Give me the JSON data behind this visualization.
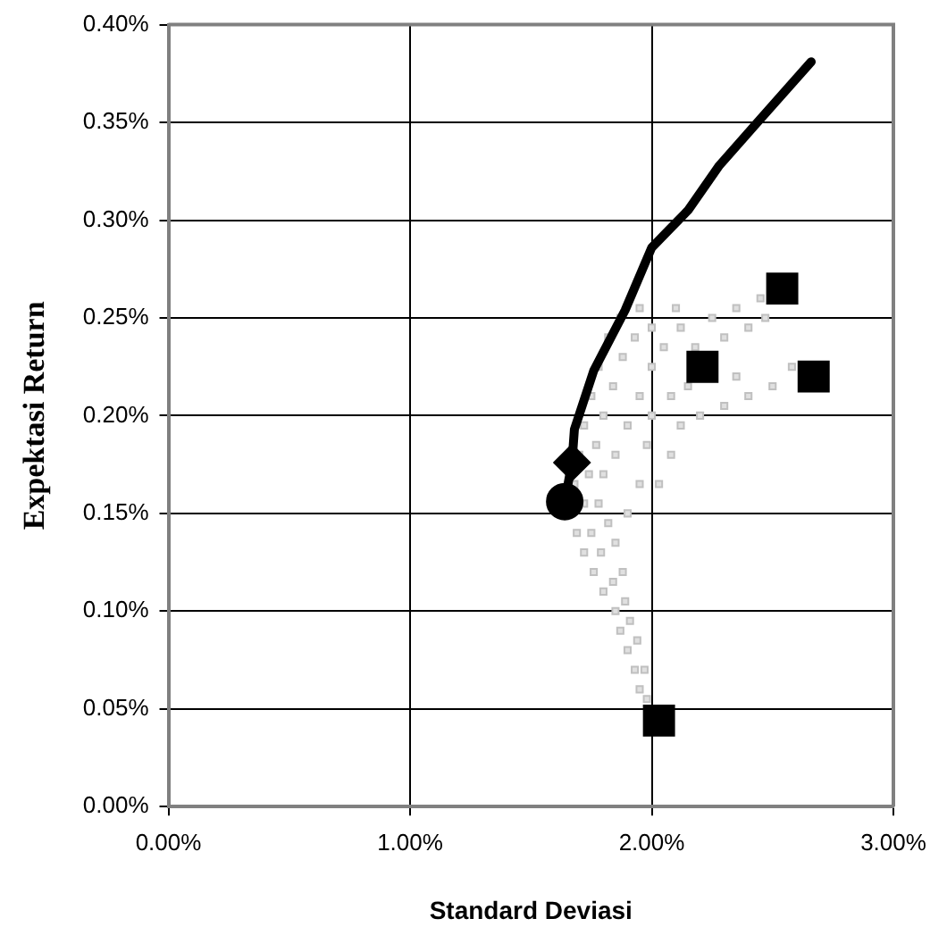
{
  "chart_data": {
    "type": "scatter",
    "xlabel": "Standard Deviasi",
    "ylabel": "Expektasi Return",
    "xlim": [
      0,
      3
    ],
    "ylim": [
      0,
      0.4
    ],
    "xticks": [
      {
        "value": 0,
        "label": "0.00%"
      },
      {
        "value": 1,
        "label": "1.00%"
      },
      {
        "value": 2,
        "label": "2.00%"
      },
      {
        "value": 3,
        "label": "3.00%"
      }
    ],
    "yticks": [
      {
        "value": 0,
        "label": "0.00%"
      },
      {
        "value": 0.05,
        "label": "0.05%"
      },
      {
        "value": 0.1,
        "label": "0.10%"
      },
      {
        "value": 0.15,
        "label": "0.15%"
      },
      {
        "value": 0.2,
        "label": "0.20%"
      },
      {
        "value": 0.25,
        "label": "0.25%"
      },
      {
        "value": 0.3,
        "label": "0.30%"
      },
      {
        "value": 0.35,
        "label": "0.35%"
      },
      {
        "value": 0.4,
        "label": "0.40%"
      }
    ],
    "grid": true,
    "legend": false,
    "series": [
      {
        "color": "#c0c0c0",
        "marker": "square",
        "x": [
          1.98,
          1.95,
          1.93,
          1.97,
          1.9,
          1.94,
          1.87,
          1.91,
          1.85,
          1.89,
          1.8,
          1.84,
          1.88,
          1.76,
          1.72,
          1.79,
          1.85,
          1.69,
          1.75,
          1.82,
          1.72,
          1.78,
          1.9,
          1.68,
          1.74,
          1.8,
          1.95,
          2.03,
          1.7,
          1.77,
          1.85,
          1.98,
          2.08,
          1.72,
          1.8,
          1.9,
          2.0,
          2.12,
          2.2,
          1.75,
          1.84,
          1.95,
          2.08,
          2.3,
          2.4,
          2.5,
          2.58,
          1.78,
          1.88,
          2.0,
          2.15,
          2.35,
          1.82,
          1.93,
          2.05,
          2.18,
          2.3,
          2.4,
          1.87,
          2.0,
          2.12,
          2.25,
          2.35,
          2.45,
          2.47,
          1.95,
          2.1
        ],
        "values": [
          0.055,
          0.06,
          0.07,
          0.07,
          0.08,
          0.085,
          0.09,
          0.095,
          0.1,
          0.105,
          0.11,
          0.115,
          0.12,
          0.12,
          0.13,
          0.13,
          0.135,
          0.14,
          0.14,
          0.145,
          0.155,
          0.155,
          0.15,
          0.165,
          0.17,
          0.17,
          0.165,
          0.165,
          0.18,
          0.185,
          0.18,
          0.185,
          0.18,
          0.195,
          0.2,
          0.195,
          0.2,
          0.195,
          0.2,
          0.21,
          0.215,
          0.21,
          0.21,
          0.205,
          0.21,
          0.215,
          0.225,
          0.225,
          0.23,
          0.225,
          0.215,
          0.22,
          0.24,
          0.24,
          0.235,
          0.235,
          0.24,
          0.245,
          0.25,
          0.245,
          0.245,
          0.25,
          0.255,
          0.26,
          0.25,
          0.255,
          0.255
        ]
      },
      {
        "type": "line",
        "color": "#000000",
        "marker": "none",
        "x": [
          1.64,
          1.67,
          1.68,
          1.76,
          1.89,
          2.0,
          2.15,
          2.28,
          2.43,
          2.66
        ],
        "values": [
          0.156,
          0.176,
          0.193,
          0.223,
          0.254,
          0.286,
          0.305,
          0.328,
          0.349,
          0.381
        ]
      },
      {
        "color": "#000000",
        "marker": "square",
        "x": [
          2.54,
          2.21,
          2.67,
          2.03
        ],
        "values": [
          0.265,
          0.225,
          0.22,
          0.044
        ]
      },
      {
        "color": "#000000",
        "marker": "diamond",
        "x": [
          1.67
        ],
        "values": [
          0.176
        ]
      },
      {
        "color": "#000000",
        "marker": "circle",
        "x": [
          1.64
        ],
        "values": [
          0.156
        ]
      }
    ]
  }
}
